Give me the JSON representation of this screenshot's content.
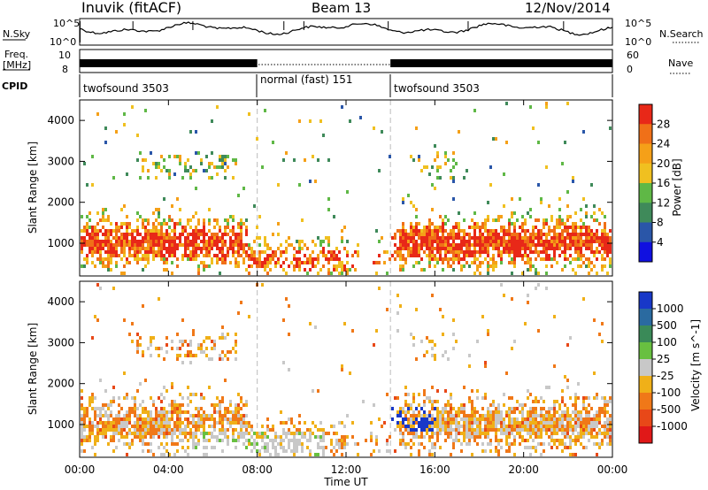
{
  "header": {
    "station": "Inuvik (fitACF)",
    "beam": "Beam 13",
    "date": "12/Nov/2014"
  },
  "sky_panel": {
    "left_label": "N.Sky",
    "right_label": "N.Search",
    "left_ticks": [
      "10^5",
      "10^0"
    ],
    "right_ticks": [
      "10^5",
      "10^0"
    ]
  },
  "freq_panel": {
    "left_label_1": "Freq.",
    "left_label_2": "[MHz]",
    "left_ticks": [
      "10",
      "8"
    ],
    "right_label": "Nave",
    "right_ticks": [
      "60",
      "0"
    ]
  },
  "cpid_panel": {
    "label": "CPID",
    "modes": [
      {
        "name": "twofsound 3503",
        "start_h": 0,
        "end_h": 8
      },
      {
        "name": "normal (fast) 151",
        "start_h": 8,
        "end_h": 14
      },
      {
        "name": "twofsound 3503",
        "start_h": 14,
        "end_h": 24
      }
    ]
  },
  "x_axis": {
    "label": "Time UT",
    "ticks": [
      "00:00",
      "04:00",
      "08:00",
      "12:00",
      "16:00",
      "20:00",
      "00:00"
    ]
  },
  "chart_data": [
    {
      "type": "heatmap",
      "panel": "power",
      "ylabel": "Slant Range [km]",
      "yticks": [
        "1000",
        "2000",
        "3000",
        "4000"
      ],
      "ylim": [
        200,
        4500
      ],
      "xlim": [
        0,
        24
      ],
      "colorbar": {
        "label": "Power [dB]",
        "ticks": [
          "4",
          "8",
          "12",
          "16",
          "20",
          "24",
          "28"
        ],
        "colors": [
          "#1010e0",
          "#2a56a8",
          "#3f8a5a",
          "#5fb846",
          "#f0c020",
          "#f5a018",
          "#f07018",
          "#e82818"
        ]
      }
    },
    {
      "type": "heatmap",
      "panel": "velocity",
      "ylabel": "Slant Range [km]",
      "yticks": [
        "1000",
        "2000",
        "3000",
        "4000"
      ],
      "ylim": [
        200,
        4500
      ],
      "xlim": [
        0,
        24
      ],
      "colorbar": {
        "label": "Velocity [m s^-1]",
        "ticks": [
          "1000",
          "500",
          "100",
          "25",
          "-25",
          "-100",
          "-500",
          "-1000"
        ],
        "colors": [
          "#1838c8",
          "#2a6aa0",
          "#3a8a58",
          "#68c040",
          "#c8c8c8",
          "#f0b018",
          "#f07818",
          "#e84818",
          "#e01818"
        ]
      }
    }
  ]
}
